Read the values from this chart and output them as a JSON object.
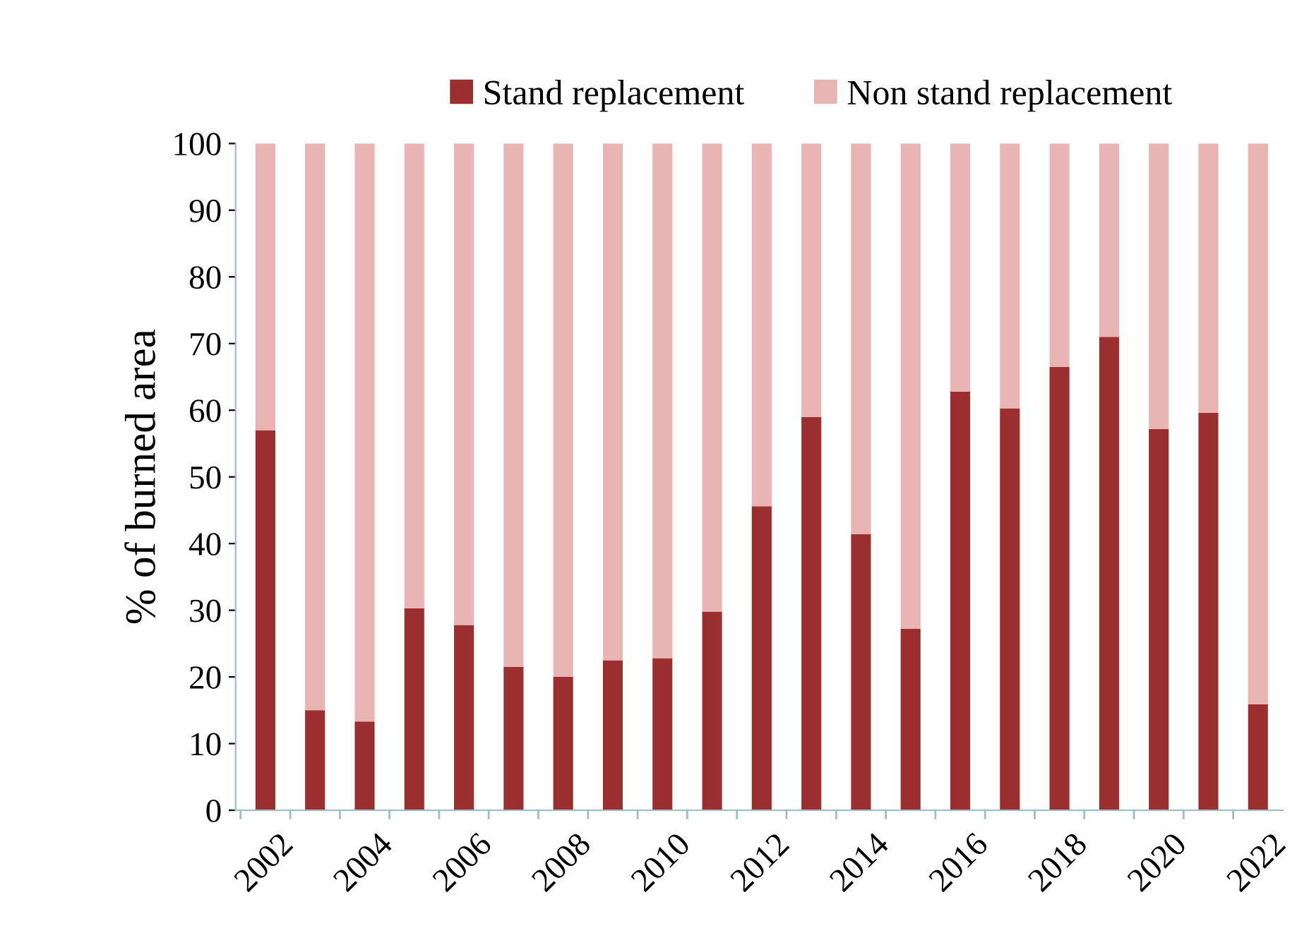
{
  "chart_data": {
    "type": "bar",
    "stacked": true,
    "ylabel": "% of burned area",
    "categories": [
      "2002",
      null,
      "2004",
      null,
      "2006",
      null,
      "2008",
      null,
      "2010",
      null,
      "2012",
      null,
      "2014",
      null,
      "2016",
      null,
      "2018",
      null,
      "2020",
      null,
      "2022"
    ],
    "series": [
      {
        "name": "Stand replacement",
        "color": "#9b2f2f",
        "values": [
          57,
          15,
          13.3,
          30.3,
          27.8,
          21.5,
          20,
          22.5,
          22.8,
          29.8,
          45.6,
          59,
          41.4,
          27.2,
          62.8,
          60.3,
          66.5,
          71,
          57.2,
          59.6,
          15.9
        ]
      },
      {
        "name": "Non stand replacement",
        "color": "#e8b4b4",
        "values": [
          43,
          85,
          86.7,
          69.7,
          72.2,
          78.5,
          80,
          77.5,
          77.2,
          70.2,
          54.4,
          41,
          58.6,
          72.8,
          37.2,
          39.7,
          33.5,
          29,
          42.8,
          40.4,
          84.1
        ]
      }
    ],
    "ylim": [
      0,
      100
    ],
    "yticks": [
      0,
      10,
      20,
      30,
      40,
      50,
      60,
      70,
      80,
      90,
      100
    ],
    "grid": false,
    "legend": "top"
  }
}
